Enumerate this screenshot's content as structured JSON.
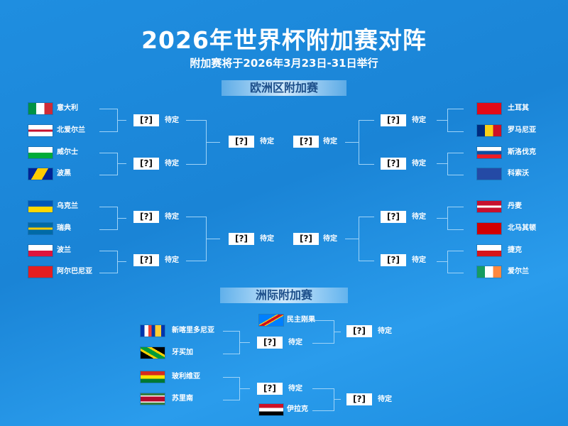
{
  "header": {
    "title": "2026年世界杯附加赛对阵",
    "subtitle": "附加赛将于2026年3月23日-31日举行"
  },
  "europe": {
    "label": "欧洲区附加赛",
    "left_teams": [
      {
        "name": "意大利",
        "flag": "italy"
      },
      {
        "name": "北爱尔兰",
        "flag": "northern-ireland"
      },
      {
        "name": "威尔士",
        "flag": "wales"
      },
      {
        "name": "波黑",
        "flag": "bosnia"
      },
      {
        "name": "乌克兰",
        "flag": "ukraine"
      },
      {
        "name": "瑞典",
        "flag": "sweden"
      },
      {
        "name": "波兰",
        "flag": "poland"
      },
      {
        "name": "阿尔巴尼亚",
        "flag": "albania"
      }
    ],
    "right_teams": [
      {
        "name": "土耳其",
        "flag": "turkey"
      },
      {
        "name": "罗马尼亚",
        "flag": "romania"
      },
      {
        "name": "斯洛伐克",
        "flag": "slovakia"
      },
      {
        "name": "科索沃",
        "flag": "kosovo"
      },
      {
        "name": "丹麦",
        "flag": "denmark"
      },
      {
        "name": "北马其顿",
        "flag": "north-macedonia"
      },
      {
        "name": "捷克",
        "flag": "czechia"
      },
      {
        "name": "爱尔兰",
        "flag": "ireland"
      }
    ]
  },
  "intercontinental": {
    "label": "洲际附加赛",
    "teams": [
      {
        "name": "新喀里多尼亚",
        "flag": "new-caledonia"
      },
      {
        "name": "牙买加",
        "flag": "jamaica"
      },
      {
        "name": "玻利维亚",
        "flag": "bolivia"
      },
      {
        "name": "苏里南",
        "flag": "suriname"
      },
      {
        "name": "民主刚果",
        "flag": "dr-congo"
      },
      {
        "name": "伊拉克",
        "flag": "iraq"
      }
    ]
  },
  "pending": {
    "icon": "[?]",
    "label": "待定"
  },
  "colors": {
    "background": "#1a84d6",
    "section_text": "#1d4f8a",
    "lines": "#9fd3f7"
  }
}
